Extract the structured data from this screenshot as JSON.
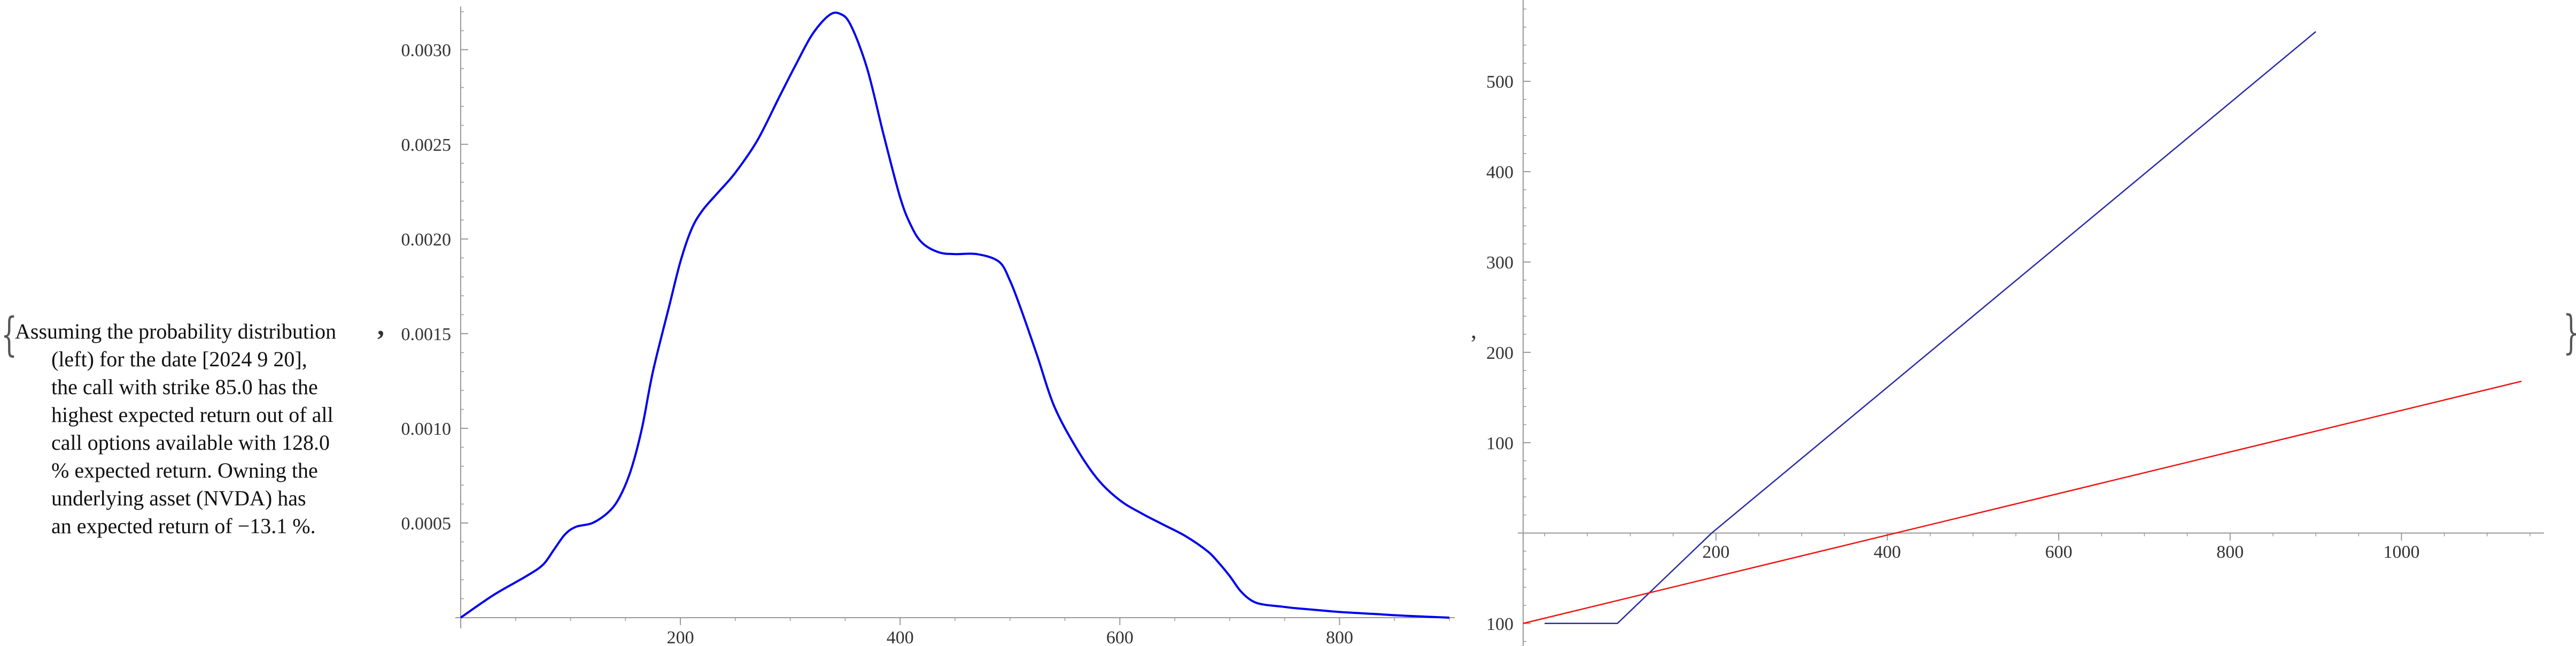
{
  "description": {
    "lines": [
      "Assuming the probability distribution",
      "(left) for the date [2024 9 20],",
      "the call with strike 85.0 has the",
      "highest expected return out of all",
      "call options available with 128.0",
      "% expected return. Owning the",
      "underlying asset (NVDA) has",
      "an expected return of −13.1 %."
    ]
  },
  "punctuation": {
    "open_brace": "{",
    "close_brace": "}",
    "comma": ","
  },
  "colors": {
    "density": "#0000ee",
    "option_payoff": "#2a2aa8",
    "stock_payoff": "#ee1111",
    "axis": "#999999"
  },
  "chart_data": [
    {
      "type": "line",
      "title": "",
      "xlabel": "",
      "ylabel": "",
      "xlim": [
        0,
        900
      ],
      "ylim": [
        0,
        0.0032
      ],
      "x_ticks": [
        200,
        400,
        600,
        800
      ],
      "x_tick_labels": [
        "200",
        "400",
        "600",
        "800"
      ],
      "y_ticks": [
        0.0005,
        0.001,
        0.0015,
        0.002,
        0.0025,
        0.003
      ],
      "y_tick_labels": [
        "0.0005",
        "0.0010",
        "0.0015",
        "0.0020",
        "0.0025",
        "0.0030"
      ],
      "grid": false,
      "series": [
        {
          "x": [
            0,
            30,
            60,
            75,
            85,
            95,
            105,
            120,
            135,
            145,
            155,
            165,
            175,
            190,
            200,
            210,
            220,
            235,
            250,
            270,
            290,
            305,
            320,
            335,
            345,
            355,
            370,
            385,
            400,
            410,
            420,
            435,
            450,
            470,
            490,
            500,
            510,
            525,
            540,
            560,
            580,
            600,
            620,
            640,
            660,
            680,
            690,
            700,
            710,
            720,
            730,
            745,
            760,
            780,
            800,
            830,
            860,
            900
          ],
          "y": [
            0.0,
            0.00012,
            0.00022,
            0.00028,
            0.00036,
            0.00044,
            0.00048,
            0.0005,
            0.00056,
            0.00064,
            0.00078,
            0.001,
            0.0013,
            0.00165,
            0.00188,
            0.00205,
            0.00215,
            0.00225,
            0.00235,
            0.00252,
            0.00275,
            0.00292,
            0.00308,
            0.00318,
            0.00319,
            0.00313,
            0.0029,
            0.00255,
            0.00222,
            0.00207,
            0.00198,
            0.00193,
            0.00192,
            0.00192,
            0.00188,
            0.00178,
            0.00163,
            0.00138,
            0.00112,
            0.0009,
            0.00073,
            0.00062,
            0.00055,
            0.00049,
            0.00043,
            0.00035,
            0.00029,
            0.00022,
            0.00014,
            9e-05,
            7e-05,
            6e-05,
            5e-05,
            4e-05,
            3e-05,
            2e-05,
            1e-05,
            0.0
          ]
        }
      ]
    },
    {
      "type": "line",
      "title": "",
      "xlabel": "",
      "ylabel": "",
      "xlim": [
        -25,
        1160
      ],
      "ylim": [
        -125,
        590
      ],
      "x_ticks": [
        200,
        400,
        600,
        800,
        1000
      ],
      "x_tick_labels": [
        "200",
        "400",
        "600",
        "800",
        "1000"
      ],
      "y_ticks": [
        -100,
        100,
        200,
        300,
        400,
        500
      ],
      "y_tick_labels": [
        "-100",
        "100",
        "200",
        "300",
        "400",
        "500"
      ],
      "grid": false,
      "series": [
        {
          "x": [
            0,
            85,
            195,
            900
          ],
          "y": [
            -100,
            -100,
            0,
            555
          ]
        },
        {
          "x": [
            -25,
            1140
          ],
          "y": [
            -100,
            168
          ]
        }
      ]
    }
  ]
}
